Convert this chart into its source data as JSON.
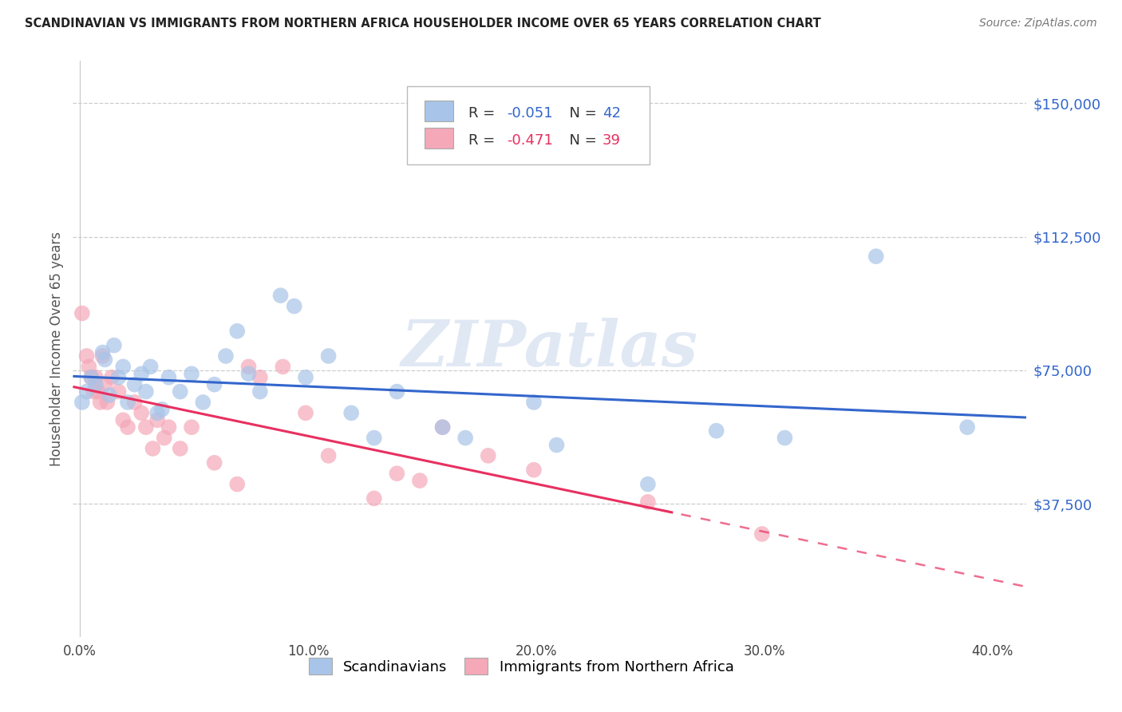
{
  "title": "SCANDINAVIAN VS IMMIGRANTS FROM NORTHERN AFRICA HOUSEHOLDER INCOME OVER 65 YEARS CORRELATION CHART",
  "source": "Source: ZipAtlas.com",
  "xlabel_ticks": [
    "0.0%",
    "",
    "",
    "",
    "",
    "10.0%",
    "",
    "",
    "",
    "",
    "20.0%",
    "",
    "",
    "",
    "",
    "30.0%",
    "",
    "",
    "",
    "",
    "40.0%"
  ],
  "xlabel_tick_vals": [
    0.0,
    0.02,
    0.04,
    0.06,
    0.08,
    0.1,
    0.12,
    0.14,
    0.16,
    0.18,
    0.2,
    0.22,
    0.24,
    0.26,
    0.28,
    0.3,
    0.32,
    0.34,
    0.36,
    0.38,
    0.4
  ],
  "ylabel": "Householder Income Over 65 years",
  "ytick_labels": [
    "$37,500",
    "$75,000",
    "$112,500",
    "$150,000"
  ],
  "ytick_vals": [
    37500,
    75000,
    112500,
    150000
  ],
  "ylim": [
    0,
    162000
  ],
  "xlim": [
    -0.003,
    0.415
  ],
  "watermark": "ZIPatlas",
  "legend_blue_r": "-0.051",
  "legend_blue_n": "42",
  "legend_pink_r": "-0.471",
  "legend_pink_n": "39",
  "blue_color": "#A8C4E8",
  "pink_color": "#F4A8B8",
  "blue_line_color": "#3366CC",
  "pink_line_color": "#E83060",
  "blue_scatter": [
    [
      0.001,
      66000
    ],
    [
      0.003,
      69000
    ],
    [
      0.005,
      73000
    ],
    [
      0.007,
      71000
    ],
    [
      0.01,
      80000
    ],
    [
      0.011,
      78000
    ],
    [
      0.013,
      68000
    ],
    [
      0.015,
      82000
    ],
    [
      0.017,
      73000
    ],
    [
      0.019,
      76000
    ],
    [
      0.021,
      66000
    ],
    [
      0.024,
      71000
    ],
    [
      0.027,
      74000
    ],
    [
      0.029,
      69000
    ],
    [
      0.031,
      76000
    ],
    [
      0.034,
      63000
    ],
    [
      0.036,
      64000
    ],
    [
      0.039,
      73000
    ],
    [
      0.044,
      69000
    ],
    [
      0.049,
      74000
    ],
    [
      0.054,
      66000
    ],
    [
      0.059,
      71000
    ],
    [
      0.064,
      79000
    ],
    [
      0.069,
      86000
    ],
    [
      0.074,
      74000
    ],
    [
      0.079,
      69000
    ],
    [
      0.088,
      96000
    ],
    [
      0.094,
      93000
    ],
    [
      0.099,
      73000
    ],
    [
      0.109,
      79000
    ],
    [
      0.119,
      63000
    ],
    [
      0.129,
      56000
    ],
    [
      0.139,
      69000
    ],
    [
      0.159,
      59000
    ],
    [
      0.169,
      56000
    ],
    [
      0.199,
      66000
    ],
    [
      0.209,
      54000
    ],
    [
      0.249,
      43000
    ],
    [
      0.279,
      58000
    ],
    [
      0.309,
      56000
    ],
    [
      0.349,
      107000
    ],
    [
      0.389,
      59000
    ]
  ],
  "pink_scatter": [
    [
      0.001,
      91000
    ],
    [
      0.003,
      79000
    ],
    [
      0.004,
      76000
    ],
    [
      0.005,
      73000
    ],
    [
      0.006,
      69000
    ],
    [
      0.007,
      73000
    ],
    [
      0.008,
      69000
    ],
    [
      0.009,
      66000
    ],
    [
      0.01,
      79000
    ],
    [
      0.011,
      71000
    ],
    [
      0.012,
      66000
    ],
    [
      0.014,
      73000
    ],
    [
      0.017,
      69000
    ],
    [
      0.019,
      61000
    ],
    [
      0.021,
      59000
    ],
    [
      0.024,
      66000
    ],
    [
      0.027,
      63000
    ],
    [
      0.029,
      59000
    ],
    [
      0.032,
      53000
    ],
    [
      0.034,
      61000
    ],
    [
      0.037,
      56000
    ],
    [
      0.039,
      59000
    ],
    [
      0.044,
      53000
    ],
    [
      0.049,
      59000
    ],
    [
      0.059,
      49000
    ],
    [
      0.069,
      43000
    ],
    [
      0.074,
      76000
    ],
    [
      0.079,
      73000
    ],
    [
      0.089,
      76000
    ],
    [
      0.099,
      63000
    ],
    [
      0.109,
      51000
    ],
    [
      0.129,
      39000
    ],
    [
      0.139,
      46000
    ],
    [
      0.149,
      44000
    ],
    [
      0.159,
      59000
    ],
    [
      0.179,
      51000
    ],
    [
      0.199,
      47000
    ],
    [
      0.249,
      38000
    ],
    [
      0.299,
      29000
    ]
  ]
}
